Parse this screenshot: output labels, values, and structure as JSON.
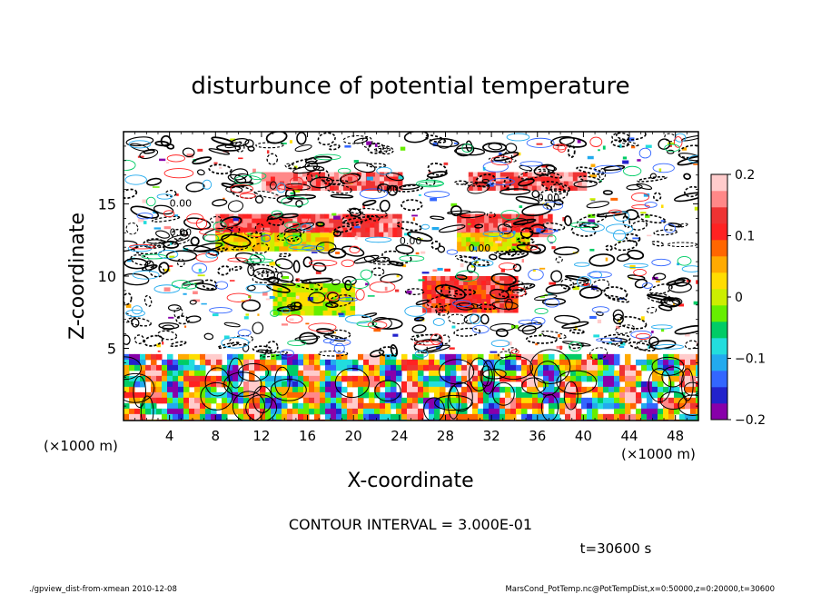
{
  "chart_data": {
    "type": "heatmap",
    "title": "disturbunce of potential temperature",
    "xlabel": "X-coordinate",
    "ylabel": "Z-coordinate",
    "x_unit": "(×1000 m)",
    "y_unit": "(×1000 m)",
    "xlim": [
      0,
      50
    ],
    "ylim": [
      0,
      20
    ],
    "x_ticks": [
      4,
      8,
      12,
      16,
      20,
      24,
      28,
      32,
      36,
      40,
      44,
      48
    ],
    "y_ticks": [
      5,
      10,
      15
    ],
    "colorbar": {
      "range": [
        -0.2,
        0.2
      ],
      "ticks": [
        {
          "value": 0.2,
          "label": "0.2"
        },
        {
          "value": 0.1,
          "label": "0.1"
        },
        {
          "value": 0,
          "label": "0"
        },
        {
          "value": -0.1,
          "label": "−0.1"
        },
        {
          "value": -0.2,
          "label": "−0.2"
        }
      ],
      "colors": [
        "#8800aa",
        "#2222cc",
        "#3366ff",
        "#22aaee",
        "#22dddd",
        "#00cc66",
        "#66ee00",
        "#ccee00",
        "#ffdd00",
        "#ffaa00",
        "#ff6600",
        "#ff2222",
        "#ee3333",
        "#ff8888",
        "#ffcccc"
      ]
    },
    "contour_interval": "CONTOUR INTERVAL = 3.000E-01",
    "time_label": "t=30600 s",
    "warm_bands": [
      {
        "x": [
          12,
          24
        ],
        "z": [
          16,
          17.2
        ],
        "value": 0.15
      },
      {
        "x": [
          30,
          40
        ],
        "z": [
          16,
          17.2
        ],
        "value": 0.15
      },
      {
        "x": [
          8,
          24
        ],
        "z": [
          13,
          14.3
        ],
        "value": 0.14
      },
      {
        "x": [
          29,
          37
        ],
        "z": [
          13,
          14.3
        ],
        "value": 0.14
      },
      {
        "x": [
          26,
          34
        ],
        "z": [
          7.5,
          10
        ],
        "value": 0.12
      }
    ],
    "cool_bands": [
      {
        "x": [
          8,
          18
        ],
        "z": [
          12,
          13
        ],
        "value": 0.02
      },
      {
        "x": [
          29,
          35
        ],
        "z": [
          12,
          13
        ],
        "value": 0.02
      },
      {
        "x": [
          13,
          20
        ],
        "z": [
          7.5,
          9.5
        ],
        "value": 0.0
      }
    ],
    "lower_layer": {
      "z": [
        0,
        4.5
      ],
      "values": "mixed −0.2 to 0.2"
    }
  },
  "footer": {
    "left": "./gpview_dist-from-xmean  2010-12-08",
    "right": "MarsCond_PotTemp.nc@PotTempDist,x=0:50000,z=0:20000,t=30600"
  },
  "contour_labels": [
    "0.00",
    "0.00",
    "0.00",
    "0.00",
    "0.00",
    "0.00"
  ]
}
